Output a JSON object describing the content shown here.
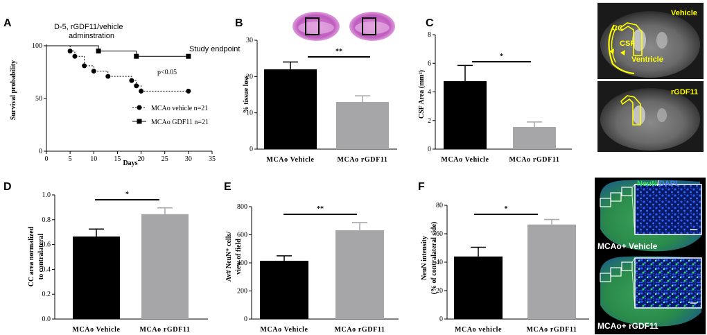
{
  "figure": {
    "panel_labels": [
      "A",
      "B",
      "C",
      "D",
      "E",
      "F"
    ],
    "mri": {
      "vehicle_label": "Vehicle",
      "rgdf11_label": "rGDF11",
      "annotation_cc": "CC",
      "annotation_csf": "CSF",
      "annotation_ventricle": "Ventricle"
    },
    "histology": {
      "stain_neun": "NeuN",
      "stain_sep": "/",
      "stain_dapi": "DAPI",
      "vehicle_caption": "MCAo+ Vehicle",
      "rgdf11_caption": "MCAo+ rGDF11"
    }
  },
  "chart_data": [
    {
      "id": "A",
      "type": "line",
      "title": "D-5, rGDF11/vehicle adminstration",
      "title_line1": "D-5, rGDF11/vehicle",
      "title_line2": "adminstration",
      "annotation": "Study endpoint",
      "p_value": "p<0.05",
      "xlabel": "Days",
      "ylabel": "Survival probability",
      "xlim": [
        0,
        35
      ],
      "ylim": [
        0,
        100
      ],
      "xticks": [
        0,
        5,
        10,
        15,
        20,
        25,
        30,
        35
      ],
      "yticks": [
        0,
        50,
        100
      ],
      "series": [
        {
          "name": "MCAo vehicle n=21",
          "marker": "circle",
          "x": [
            5,
            6,
            8,
            10,
            13,
            18,
            19,
            20,
            30
          ],
          "y": [
            95,
            90,
            81,
            76,
            71,
            67,
            62,
            57,
            57
          ]
        },
        {
          "name": "MCAo GDF11 n=21",
          "marker": "square",
          "x": [
            11,
            19,
            30
          ],
          "y": [
            95,
            90,
            90
          ]
        }
      ]
    },
    {
      "id": "B",
      "type": "bar",
      "categories": [
        "MCAo Vehicle",
        "MCAo rGDF11"
      ],
      "values": [
        22,
        13
      ],
      "errors": [
        2,
        1.7
      ],
      "colors": [
        "#000000",
        "#a6a6a8"
      ],
      "ylabel": "% tissue loss",
      "ylim": [
        0,
        30
      ],
      "yticks": [
        0,
        10,
        20,
        30
      ],
      "significance": "**"
    },
    {
      "id": "C",
      "type": "bar",
      "categories": [
        "MCAo Vehicle",
        "MCAo rGDF11"
      ],
      "values": [
        4.75,
        1.55
      ],
      "errors": [
        1.1,
        0.35
      ],
      "colors": [
        "#000000",
        "#a6a6a8"
      ],
      "ylabel": "CSF Area (mm²)",
      "ylim": [
        0,
        8
      ],
      "yticks": [
        0,
        2,
        4,
        6,
        8
      ],
      "significance": "*"
    },
    {
      "id": "D",
      "type": "bar",
      "categories": [
        "MCAo Vehicle",
        "MCAo rGDF11"
      ],
      "values": [
        0.665,
        0.845
      ],
      "errors": [
        0.06,
        0.05
      ],
      "colors": [
        "#000000",
        "#a6a6a8"
      ],
      "ylabel_line1": "CC area normalized",
      "ylabel_line2": "to contralateral",
      "ylim": [
        0,
        1.0
      ],
      "yticks": [
        0.0,
        0.2,
        0.4,
        0.6,
        0.8,
        1.0
      ],
      "ytick_labels": [
        "0.0",
        "0.2",
        "0.4",
        "0.6",
        "0.8",
        "1.0"
      ],
      "significance": "*"
    },
    {
      "id": "E",
      "type": "bar",
      "categories": [
        "MCAo Vehicle",
        "MCAo rGDF11"
      ],
      "values": [
        415,
        632
      ],
      "errors": [
        35,
        55
      ],
      "colors": [
        "#000000",
        "#a6a6a8"
      ],
      "ylabel_line1": "Av# NeuN⁺ cells/",
      "ylabel_line2": "view of field",
      "ylim": [
        0,
        800
      ],
      "yticks": [
        0,
        200,
        400,
        600,
        800
      ],
      "significance": "**"
    },
    {
      "id": "F",
      "type": "bar",
      "categories": [
        "MCAo vehicle",
        "MCAo rGDF11"
      ],
      "values": [
        44,
        66.5
      ],
      "errors": [
        6.5,
        3.5
      ],
      "colors": [
        "#000000",
        "#a6a6a8"
      ],
      "ylabel_line1": "NeuN intensity",
      "ylabel_line2": "(% of contralateral side)",
      "ylim": [
        0,
        80
      ],
      "yticks": [
        0,
        20,
        40,
        60,
        80
      ],
      "significance": "*"
    }
  ]
}
